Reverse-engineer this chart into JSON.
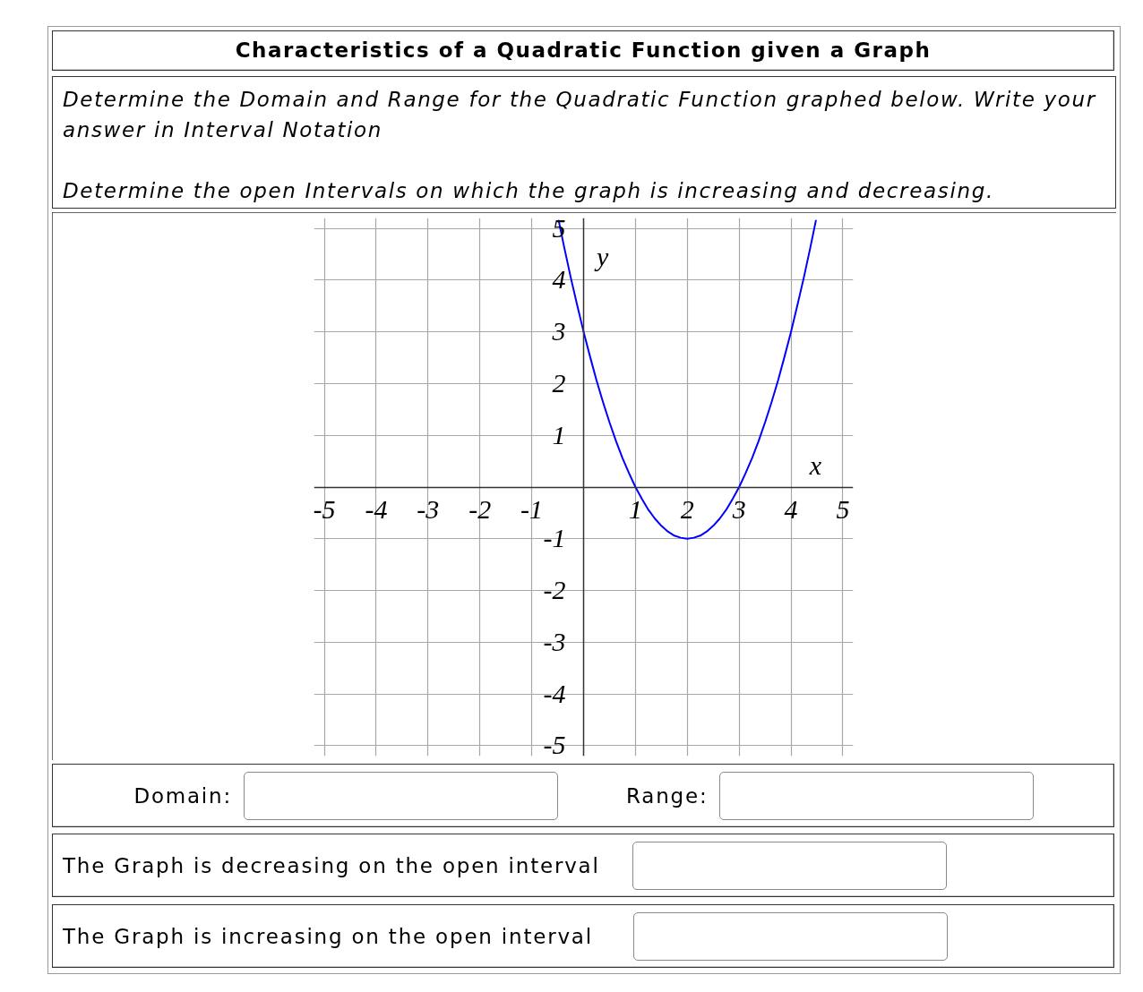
{
  "chart_data": {
    "type": "line",
    "title": "Characteristics of a Quadratic Function given a Graph",
    "subtitle": "Determine the Domain and Range for the Quadratic Function graphed below. Write your answer in Interval Notation",
    "annotations": [
      "Determine the open Intervals on which the graph is increasing and decreasing.",
      "Domain:",
      "Range:",
      "The Graph is decreasing on the open interval",
      "The Graph is increasing on the open interval"
    ],
    "xlabel": "x",
    "ylabel": "y",
    "x": [
      -0.48,
      -0.375,
      -0.25,
      -0.125,
      0,
      0.125,
      0.25,
      0.375,
      0.5,
      0.625,
      0.75,
      0.875,
      1,
      1.125,
      1.25,
      1.375,
      1.5,
      1.625,
      1.75,
      1.875,
      2,
      2.125,
      2.25,
      2.375,
      2.5,
      2.625,
      2.75,
      2.875,
      3,
      3.125,
      3.25,
      3.375,
      3.5,
      3.625,
      3.75,
      3.875,
      4,
      4.125,
      4.25,
      4.375,
      4.48
    ],
    "series": [
      {
        "color": "#0000ff",
        "values": [
          5.15,
          4.64,
          4.06,
          3.52,
          3,
          2.52,
          2.06,
          1.64,
          1.25,
          0.89,
          0.56,
          0.27,
          0,
          -0.23,
          -0.44,
          -0.61,
          -0.75,
          -0.86,
          -0.94,
          -0.98,
          -1,
          -0.98,
          -0.94,
          -0.86,
          -0.75,
          -0.61,
          -0.44,
          -0.23,
          0,
          0.27,
          0.56,
          0.89,
          1.25,
          1.64,
          2.06,
          2.52,
          3,
          3.52,
          4.06,
          4.64,
          5.15
        ]
      }
    ],
    "xlim": [
      -5.2,
      5.2
    ],
    "ylim": [
      -5.2,
      5.2
    ],
    "xticks": [
      -5,
      -4,
      -3,
      -2,
      -1,
      1,
      2,
      3,
      4,
      5
    ],
    "yticks": [
      -5,
      -4,
      -3,
      -2,
      -1,
      1,
      2,
      3,
      4,
      5
    ],
    "grid": true
  }
}
